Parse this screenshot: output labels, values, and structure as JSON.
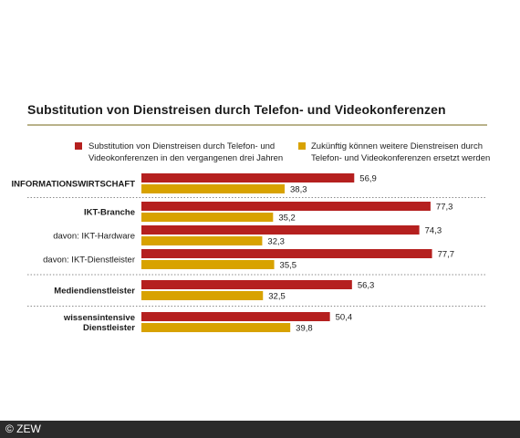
{
  "footer": {
    "copyright": "© ZEW"
  },
  "colors": {
    "series1": "#b5201f",
    "series2": "#d8a200",
    "divider": "#8c8c8c",
    "rule": "#b9b28a"
  },
  "chart_data": {
    "type": "bar",
    "orientation": "horizontal",
    "title": "Substitution von Dienstreisen durch Telefon- und Videokonferenzen",
    "categories": [
      "INFORMATIONSWIRTSCHAFT",
      "IKT-Branche",
      "davon: IKT-Hardware",
      "davon: IKT-Dienstleister",
      "Mediendienstleister",
      "wissensintensive Dienstleister"
    ],
    "category_label_lines": [
      [
        "INFORMATIONSWIRTSCHAFT"
      ],
      [
        "IKT-Branche"
      ],
      [
        "davon: IKT-Hardware"
      ],
      [
        "davon: IKT-Dienstleister"
      ],
      [
        "Mediendienstleister"
      ],
      [
        "wissensintensive",
        "Dienstleister"
      ]
    ],
    "category_bold": [
      true,
      true,
      false,
      false,
      true,
      true
    ],
    "series": [
      {
        "name": "Substitution von Dienstreisen durch Telefon- und Videokonferenzen in den vergangenen drei Jahren",
        "name_lines": [
          "Substitution von Dienstreisen durch Telefon- und",
          "Videokonferenzen in den vergangenen drei Jahren"
        ],
        "color": "#b5201f",
        "values": [
          56.9,
          77.3,
          74.3,
          77.7,
          56.3,
          50.4
        ],
        "value_labels": [
          "56,9",
          "77,3",
          "74,3",
          "77,7",
          "56,3",
          "50,4"
        ]
      },
      {
        "name": "Zukünftig können weitere Dienstreisen durch Telefon- und Videokonferenzen ersetzt werden",
        "name_lines": [
          "Zukünftig können weitere Dienstreisen durch",
          "Telefon- und Videokonferenzen ersetzt werden"
        ],
        "color": "#d8a200",
        "values": [
          38.3,
          35.2,
          32.3,
          35.5,
          32.5,
          39.8
        ],
        "value_labels": [
          "38,3",
          "35,2",
          "32,3",
          "35,5",
          "32,5",
          "39,8"
        ]
      }
    ],
    "xlim": [
      0,
      100
    ],
    "grid": false,
    "legend": "top"
  }
}
